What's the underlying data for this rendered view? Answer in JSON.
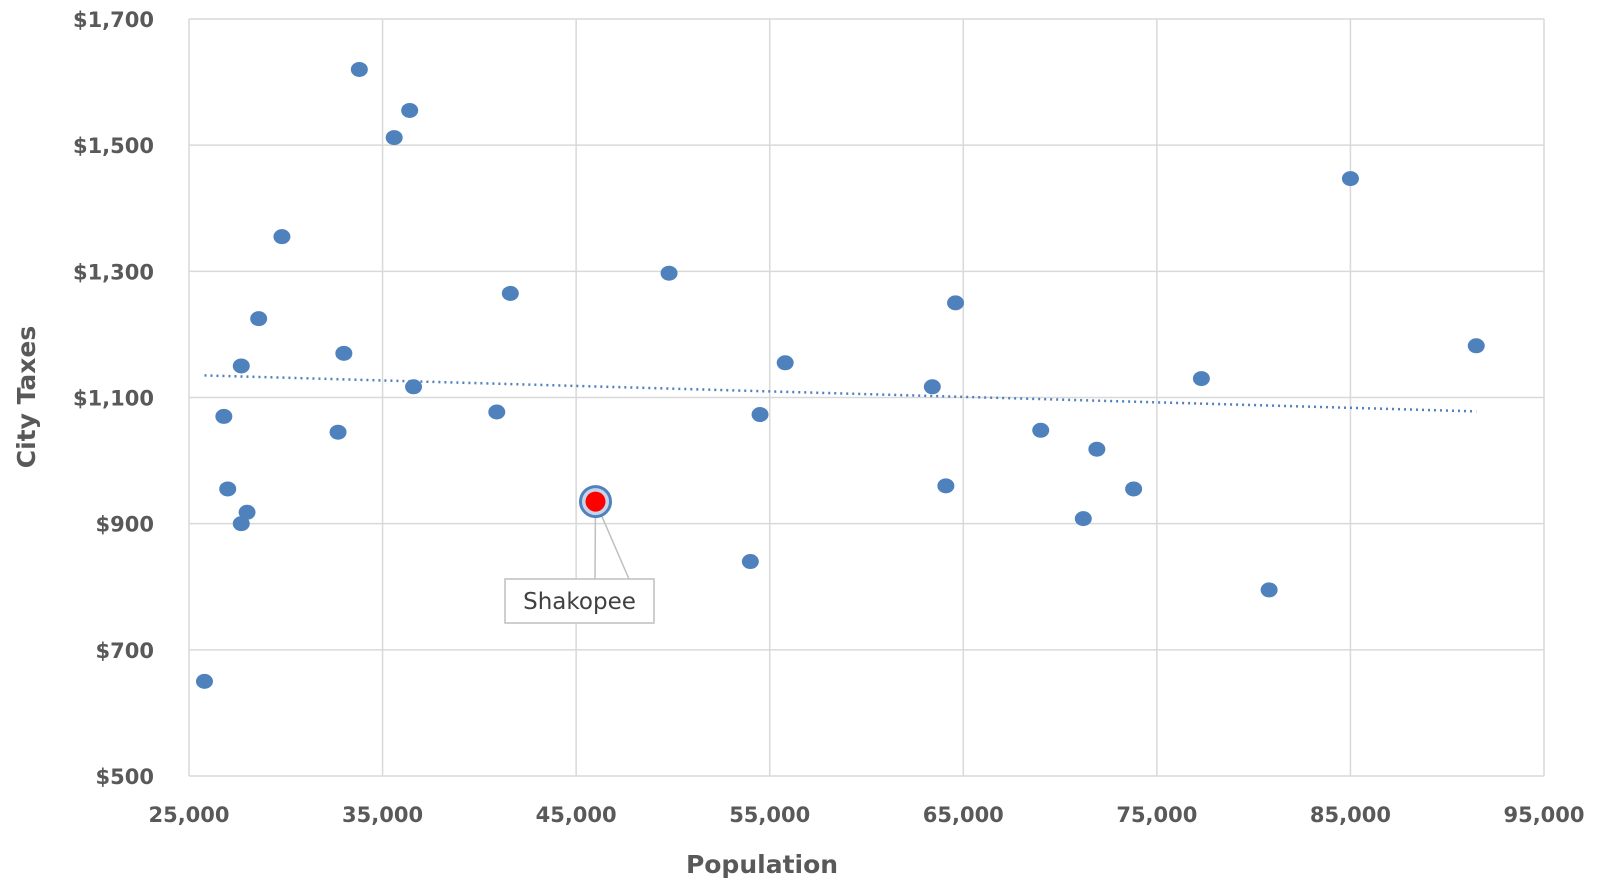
{
  "chart_data": {
    "type": "scatter",
    "xlabel": "Population",
    "ylabel": "City Taxes",
    "xlim": [
      25000,
      95000
    ],
    "ylim": [
      500,
      1700
    ],
    "x_ticks": [
      "25,000",
      "35,000",
      "45,000",
      "55,000",
      "65,000",
      "75,000",
      "85,000",
      "95,000"
    ],
    "y_ticks": [
      "$500",
      "$700",
      "$900",
      "$1,100",
      "$1,300",
      "$1,500",
      "$1,700"
    ],
    "grid": true,
    "colors": {
      "points": "#4f81bd",
      "highlight": "#ff0000",
      "highlight_ring": "#4f81bd",
      "trendline": "#4f81bd",
      "grid": "#d9d9d9"
    },
    "points": [
      {
        "x": 25800,
        "y": 650
      },
      {
        "x": 26800,
        "y": 1070
      },
      {
        "x": 27000,
        "y": 955
      },
      {
        "x": 27700,
        "y": 900
      },
      {
        "x": 27700,
        "y": 1150
      },
      {
        "x": 28000,
        "y": 918
      },
      {
        "x": 28600,
        "y": 1225
      },
      {
        "x": 29800,
        "y": 1355
      },
      {
        "x": 32700,
        "y": 1045
      },
      {
        "x": 33000,
        "y": 1170
      },
      {
        "x": 33800,
        "y": 1620
      },
      {
        "x": 35600,
        "y": 1512
      },
      {
        "x": 36400,
        "y": 1555
      },
      {
        "x": 36600,
        "y": 1117
      },
      {
        "x": 40900,
        "y": 1077
      },
      {
        "x": 41600,
        "y": 1265
      },
      {
        "x": 49800,
        "y": 1297
      },
      {
        "x": 54000,
        "y": 840
      },
      {
        "x": 54500,
        "y": 1073
      },
      {
        "x": 55800,
        "y": 1155
      },
      {
        "x": 63400,
        "y": 1117
      },
      {
        "x": 64100,
        "y": 960
      },
      {
        "x": 64600,
        "y": 1250
      },
      {
        "x": 69000,
        "y": 1048
      },
      {
        "x": 71200,
        "y": 908
      },
      {
        "x": 71900,
        "y": 1018
      },
      {
        "x": 73800,
        "y": 955
      },
      {
        "x": 77300,
        "y": 1130
      },
      {
        "x": 80800,
        "y": 795
      },
      {
        "x": 85000,
        "y": 1447
      },
      {
        "x": 91500,
        "y": 1182
      }
    ],
    "highlight": {
      "x": 46000,
      "y": 935,
      "label": "Shakopee"
    },
    "trendline": {
      "style": "dotted",
      "x": [
        25800,
        91500
      ],
      "y": [
        1135,
        1078
      ]
    }
  }
}
